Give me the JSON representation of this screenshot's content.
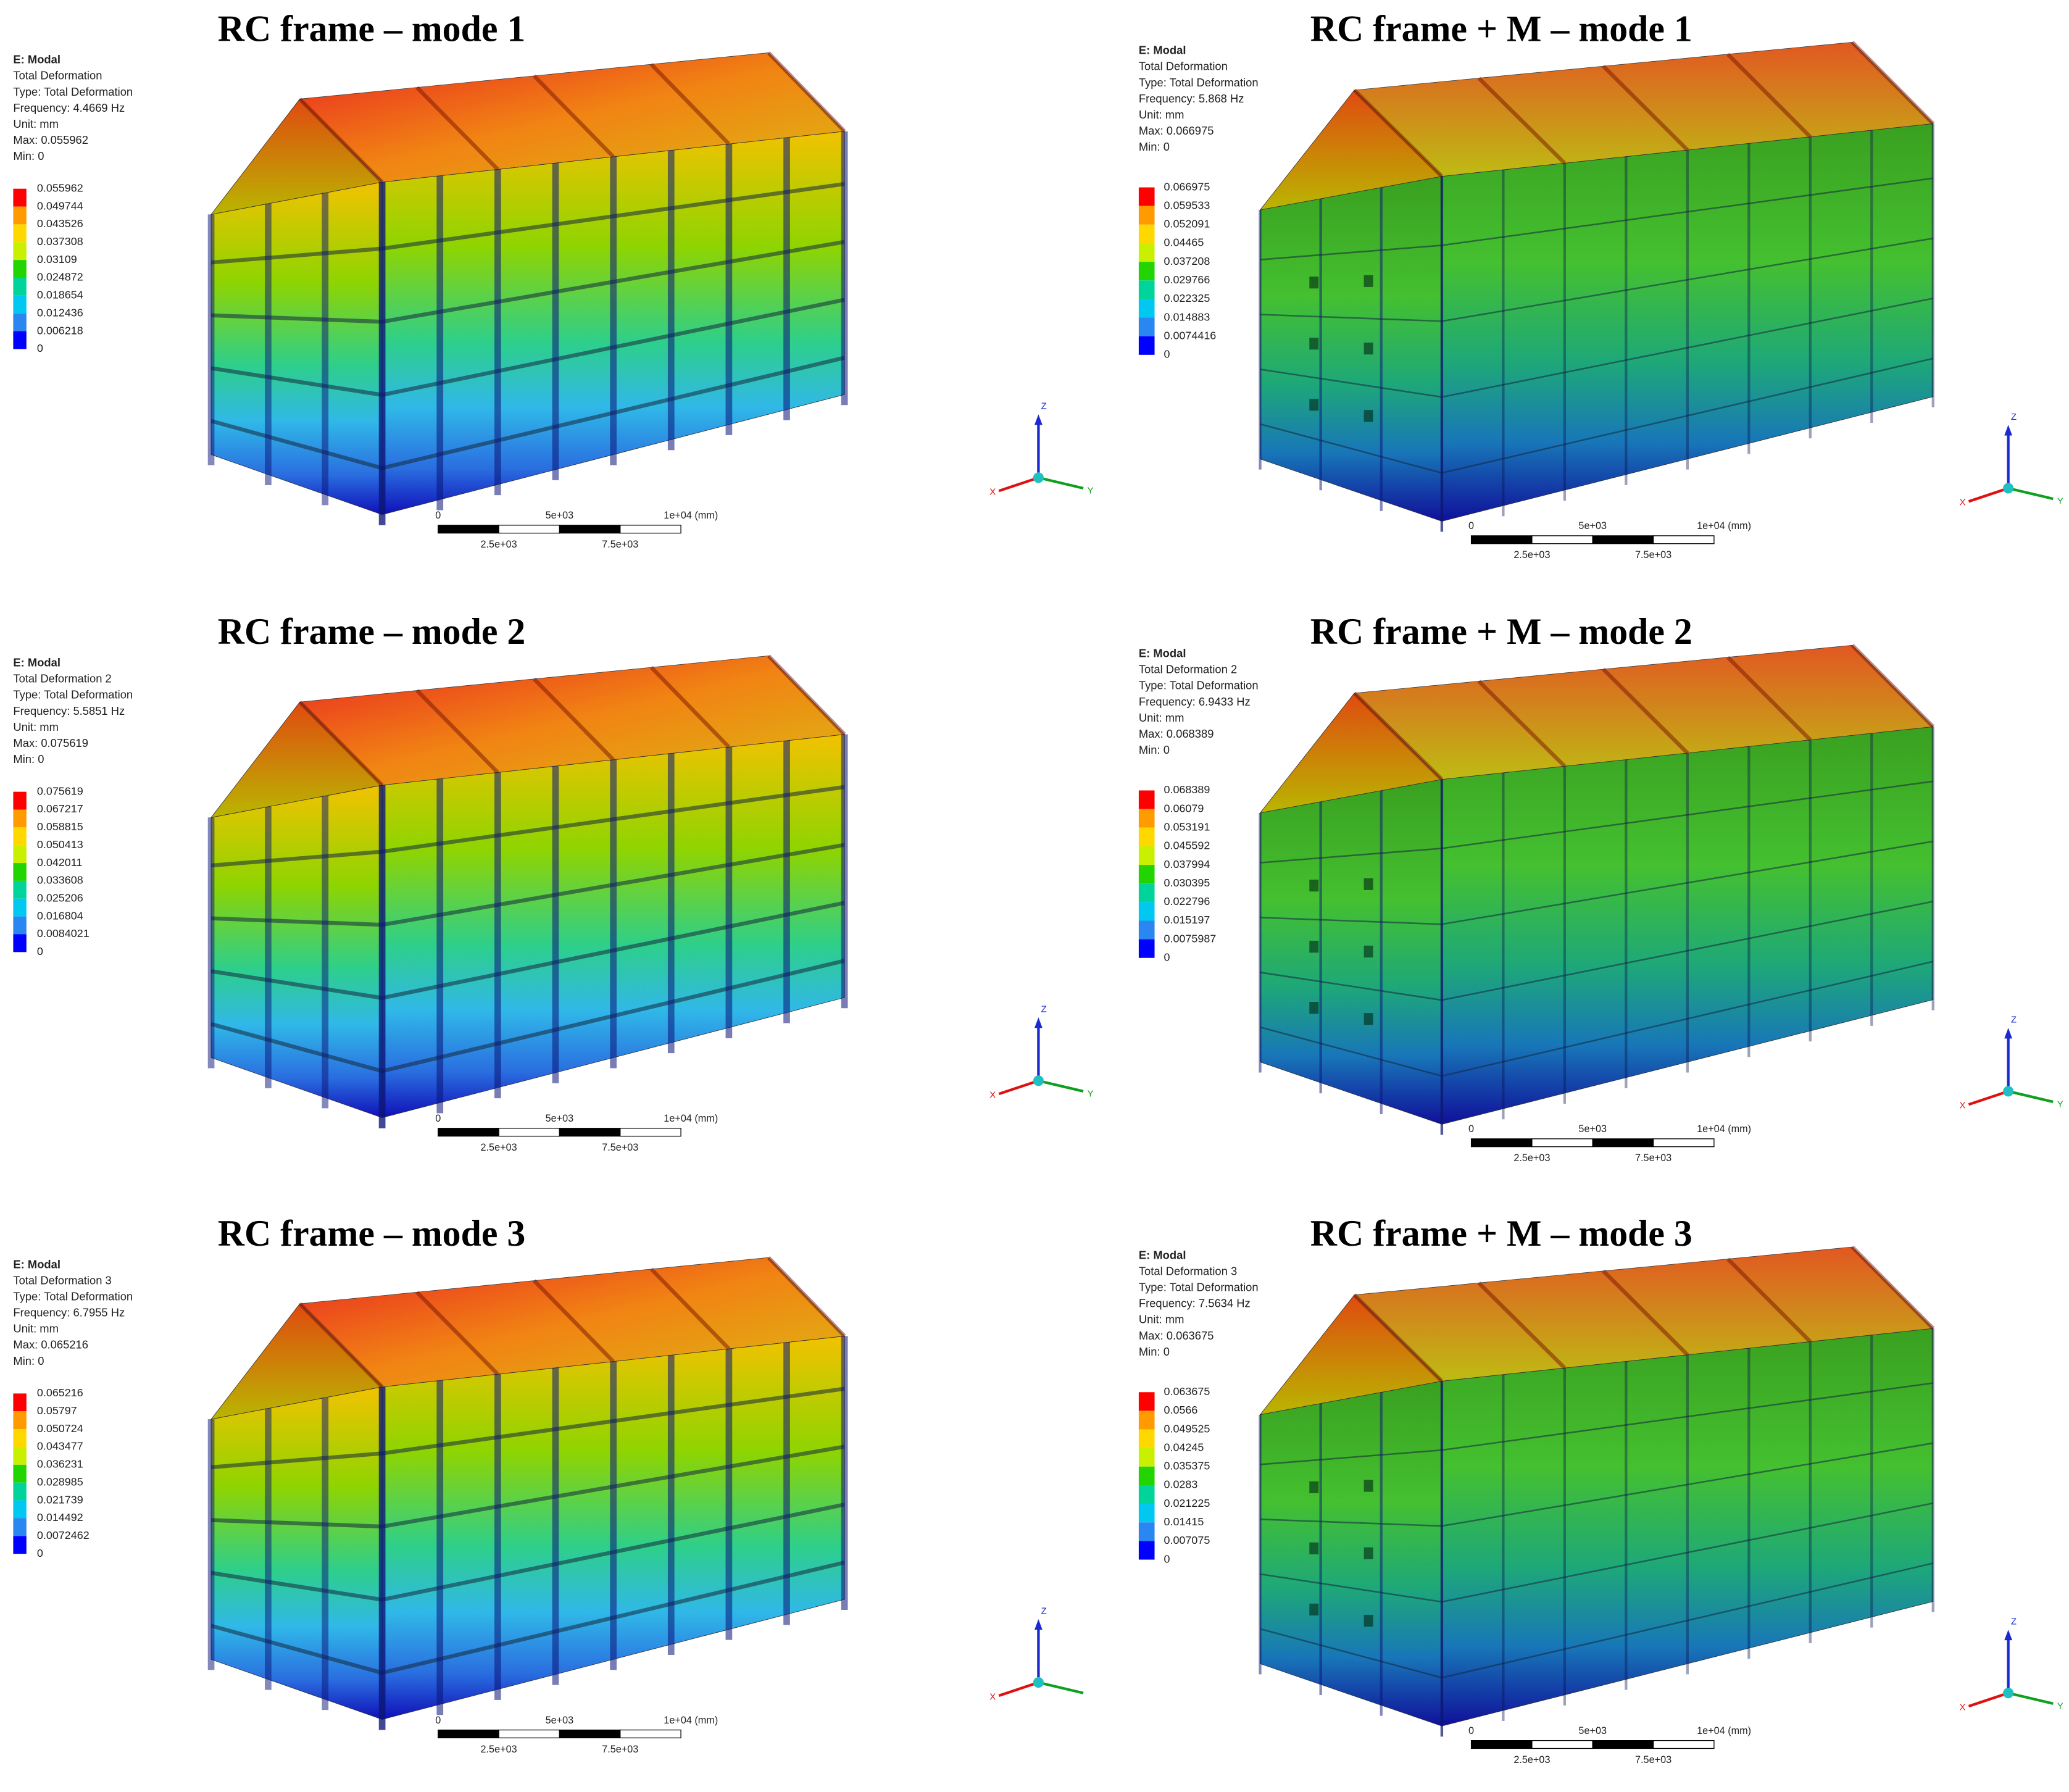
{
  "panels": [
    {
      "title": "RC frame – mode 1",
      "info": [
        "E: Modal",
        "Total Deformation",
        "Type: Total Deformation",
        "Frequency: 4.4669 Hz",
        "Unit: mm",
        "Max: 0.055962",
        "Min: 0"
      ],
      "legend": [
        "0.055962",
        "0.049744",
        "0.043526",
        "0.037308",
        "0.03109",
        "0.024872",
        "0.018654",
        "0.012436",
        "0.006218",
        "0"
      ],
      "scale_labels": [
        "0",
        "5e+03",
        "1e+04 (mm)",
        "2.5e+03",
        "7.5e+03"
      ],
      "axes": [
        "Z",
        "X",
        "Y"
      ]
    },
    {
      "title": "RC frame + M – mode 1",
      "info": [
        "E: Modal",
        "Total Deformation",
        "Type: Total Deformation",
        "Frequency: 5.868 Hz",
        "Unit: mm",
        "Max: 0.066975",
        "Min: 0"
      ],
      "legend": [
        "0.066975",
        "0.059533",
        "0.052091",
        "0.04465",
        "0.037208",
        "0.029766",
        "0.022325",
        "0.014883",
        "0.0074416",
        "0"
      ],
      "scale_labels": [
        "0",
        "5e+03",
        "1e+04 (mm)",
        "2.5e+03",
        "7.5e+03"
      ],
      "axes": [
        "Z",
        "X",
        "Y"
      ]
    },
    {
      "title": "RC frame – mode 2",
      "info": [
        "E: Modal",
        "Total Deformation 2",
        "Type: Total Deformation",
        "Frequency: 5.5851 Hz",
        "Unit: mm",
        "Max: 0.075619",
        "Min: 0"
      ],
      "legend": [
        "0.075619",
        "0.067217",
        "0.058815",
        "0.050413",
        "0.042011",
        "0.033608",
        "0.025206",
        "0.016804",
        "0.0084021",
        "0"
      ],
      "scale_labels": [
        "0",
        "5e+03",
        "1e+04 (mm)",
        "2.5e+03",
        "7.5e+03"
      ],
      "axes": [
        "Z",
        "X",
        "Y"
      ]
    },
    {
      "title": "RC frame + M – mode 2",
      "info": [
        "E: Modal",
        "Total Deformation 2",
        "Type: Total Deformation",
        "Frequency: 6.9433 Hz",
        "Unit: mm",
        "Max: 0.068389",
        "Min: 0"
      ],
      "legend": [
        "0.068389",
        "0.06079",
        "0.053191",
        "0.045592",
        "0.037994",
        "0.030395",
        "0.022796",
        "0.015197",
        "0.0075987",
        "0"
      ],
      "scale_labels": [
        "0",
        "5e+03",
        "1e+04 (mm)",
        "2.5e+03",
        "7.5e+03"
      ],
      "axes": [
        "Z",
        "X",
        "Y"
      ]
    },
    {
      "title": "RC frame – mode 3",
      "info": [
        "E: Modal",
        "Total Deformation 3",
        "Type: Total Deformation",
        "Frequency: 6.7955 Hz",
        "Unit: mm",
        "Max: 0.065216",
        "Min: 0"
      ],
      "legend": [
        "0.065216",
        "0.05797",
        "0.050724",
        "0.043477",
        "0.036231",
        "0.028985",
        "0.021739",
        "0.014492",
        "0.0072462",
        "0"
      ],
      "scale_labels": [
        "0",
        "5e+03",
        "1e+04 (mm)",
        "2.5e+03",
        "7.5e+03"
      ],
      "axes": [
        "Z",
        "X"
      ]
    },
    {
      "title": "RC frame + M – mode 3",
      "info": [
        "E: Modal",
        "Total Deformation 3",
        "Type: Total Deformation",
        "Frequency: 7.5634 Hz",
        "Unit: mm",
        "Max: 0.063675",
        "Min: 0"
      ],
      "legend": [
        "0.063675",
        "0.0566",
        "0.049525",
        "0.04245",
        "0.035375",
        "0.0283",
        "0.021225",
        "0.01415",
        "0.007075",
        "0"
      ],
      "scale_labels": [
        "0",
        "5e+03",
        "1e+04 (mm)",
        "2.5e+03",
        "7.5e+03"
      ],
      "axes": [
        "Z",
        "X",
        "Y"
      ]
    }
  ]
}
